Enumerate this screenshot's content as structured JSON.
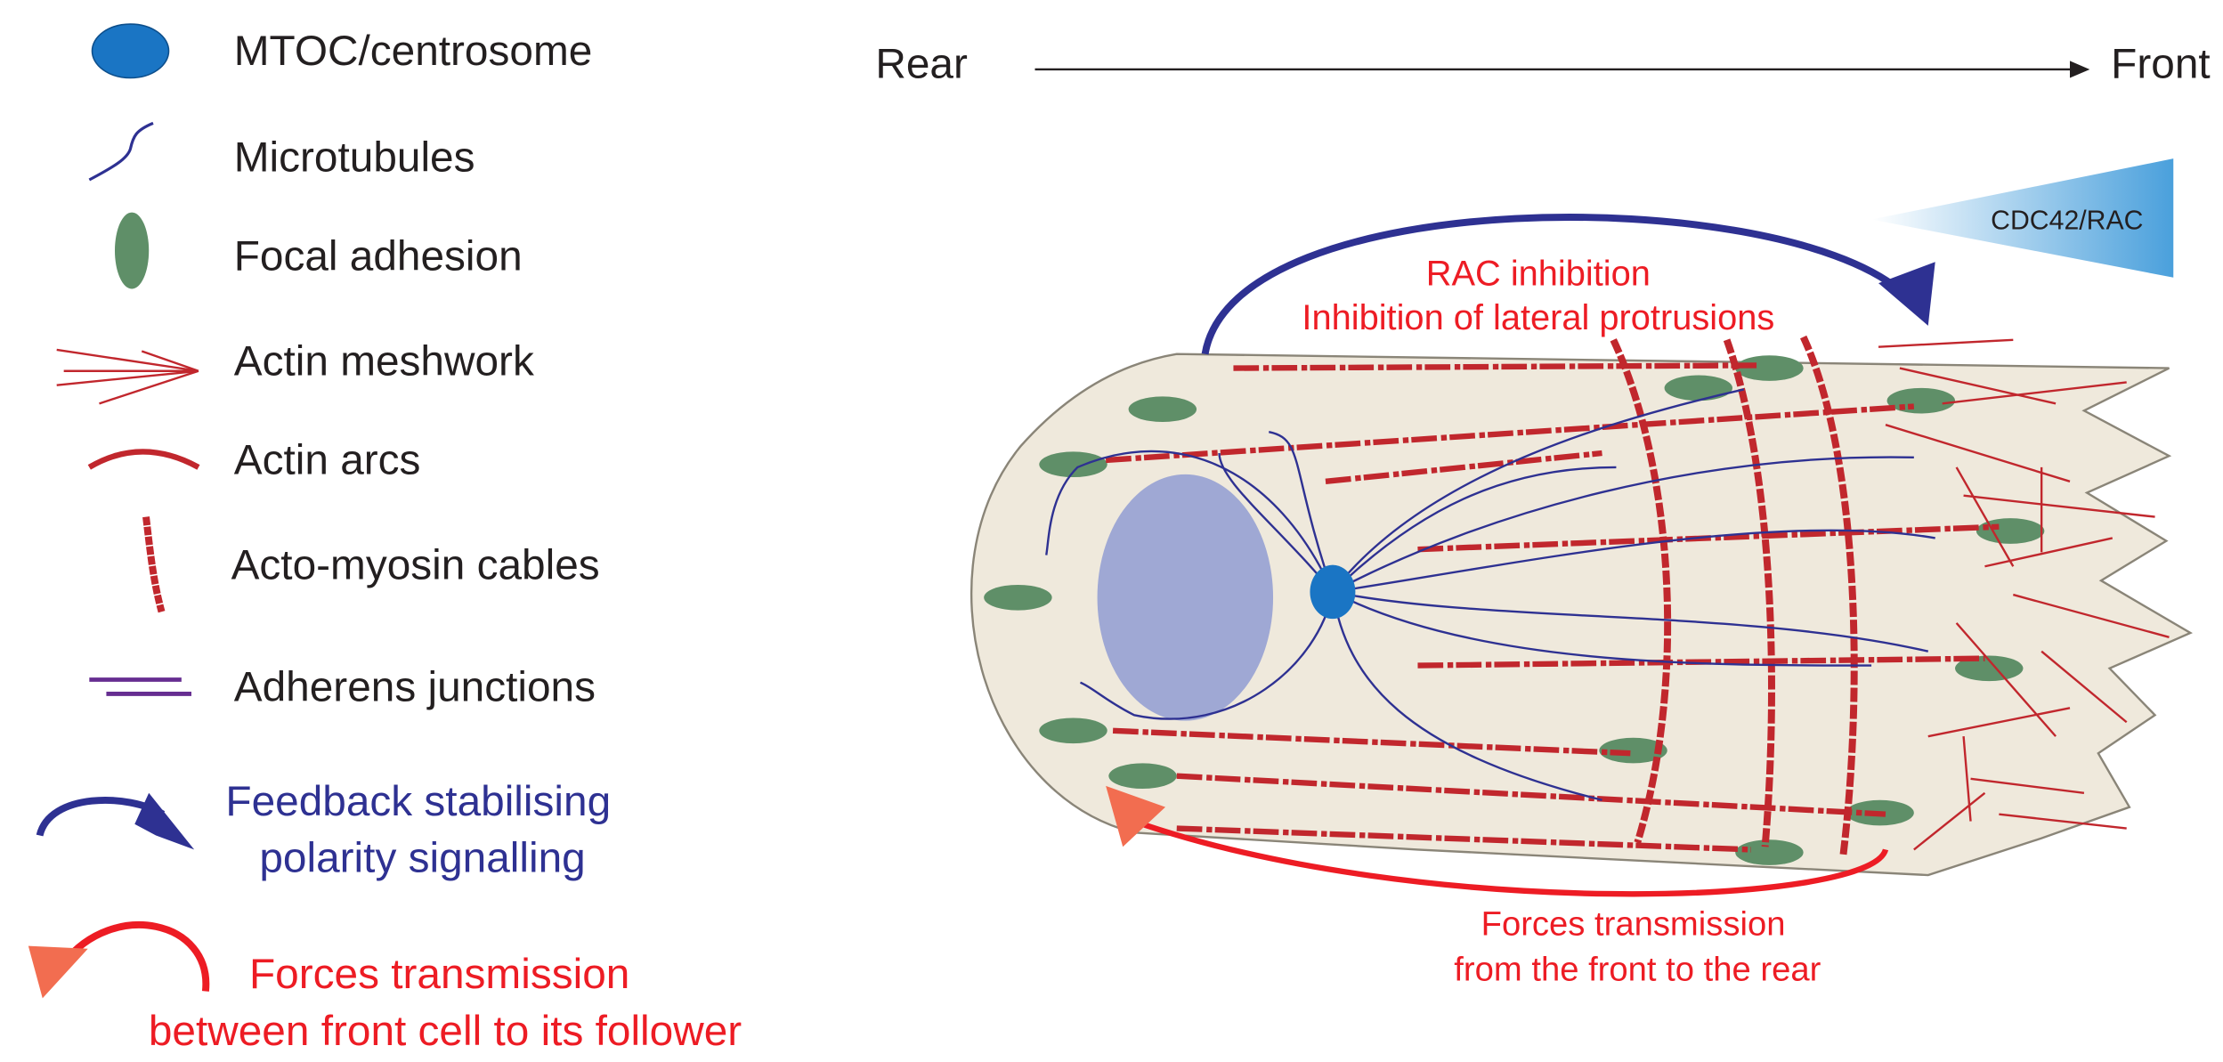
{
  "legend": [
    {
      "label": "MTOC/centrosome"
    },
    {
      "label": "Microtubules"
    },
    {
      "label": "Focal adhesion"
    },
    {
      "label": "Actin meshwork"
    },
    {
      "label": "Actin arcs"
    },
    {
      "label": "Acto-myosin cables"
    },
    {
      "label": "Adherens junctions"
    }
  ],
  "feedback_legend": {
    "lines": [
      "Feedback stabilising",
      "polarity signalling"
    ]
  },
  "forces_legend": {
    "lines": [
      "Forces transmission",
      "between front cell to its follower"
    ]
  },
  "axis": {
    "rear": "Rear",
    "front": "Front"
  },
  "gradient_label": "CDC42/RAC",
  "inhibition_annotation": {
    "lines": [
      "RAC inhibition",
      "Inhibition of lateral protrusions"
    ]
  },
  "forces_annotation": {
    "lines": [
      "Forces transmission",
      "from the front to the rear"
    ]
  }
}
